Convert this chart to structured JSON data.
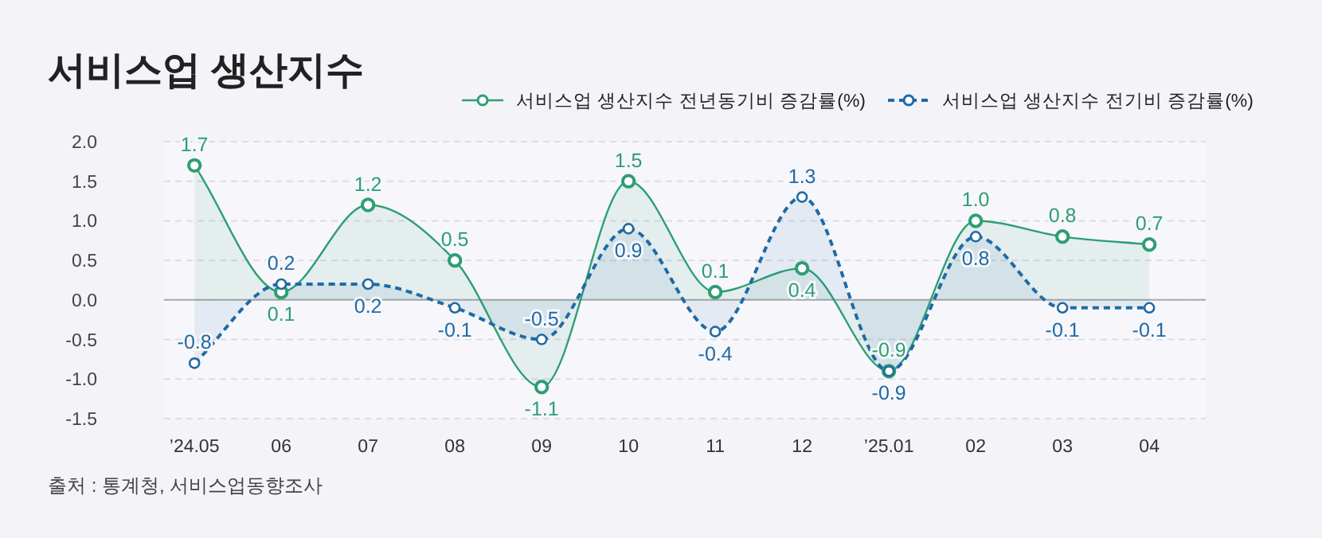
{
  "chart_data": {
    "type": "area",
    "title": "서비스업 생산지수",
    "categories": [
      "’24.05",
      "06",
      "07",
      "08",
      "09",
      "10",
      "11",
      "12",
      "’25.01",
      "02",
      "03",
      "04"
    ],
    "series": [
      {
        "name": "서비스업 생산지수 전년동기비 증감률(%)",
        "color": "#2e9e72",
        "line_style": "solid",
        "values": [
          1.7,
          0.1,
          1.2,
          0.5,
          -1.1,
          1.5,
          0.1,
          0.4,
          -0.9,
          1.0,
          0.8,
          0.7
        ],
        "value_labels": [
          "1.7",
          "0.1",
          "1.2",
          "0.5",
          "-1.1",
          "1.5",
          "0.1",
          "0.4",
          "-0.9",
          "1.0",
          "0.8",
          "0.7"
        ]
      },
      {
        "name": "서비스업 생산지수 전기비 증감률(%)",
        "color": "#1f6aa5",
        "line_style": "dashed",
        "values": [
          -0.8,
          0.2,
          0.2,
          -0.1,
          -0.5,
          0.9,
          -0.4,
          1.3,
          -0.9,
          0.8,
          -0.1,
          -0.1
        ],
        "value_labels": [
          "-0.8",
          "0.2",
          "0.2",
          "-0.1",
          "-0.5",
          "0.9",
          "-0.4",
          "1.3",
          "-0.9",
          "0.8",
          "-0.1",
          "-0.1"
        ]
      }
    ],
    "ylim": [
      -1.5,
      2.0
    ],
    "yticks": [
      {
        "value": 2,
        "label": "2.0"
      },
      1.5,
      {
        "value": 1,
        "label": "1.0"
      },
      0.5,
      {
        "value": 0,
        "label": "0.0"
      },
      -0.5,
      {
        "value": -1,
        "label": "-1.0"
      },
      -1.5
    ],
    "ref_lines": [
      {
        "axis": "y",
        "value": 0,
        "color": "#aaaaaa",
        "line_style": "solid"
      }
    ],
    "grid": "y",
    "legend": "top right",
    "marker": "circle",
    "annotations": [
      "출처 : 통계청, 서비스업동향조사"
    ]
  }
}
